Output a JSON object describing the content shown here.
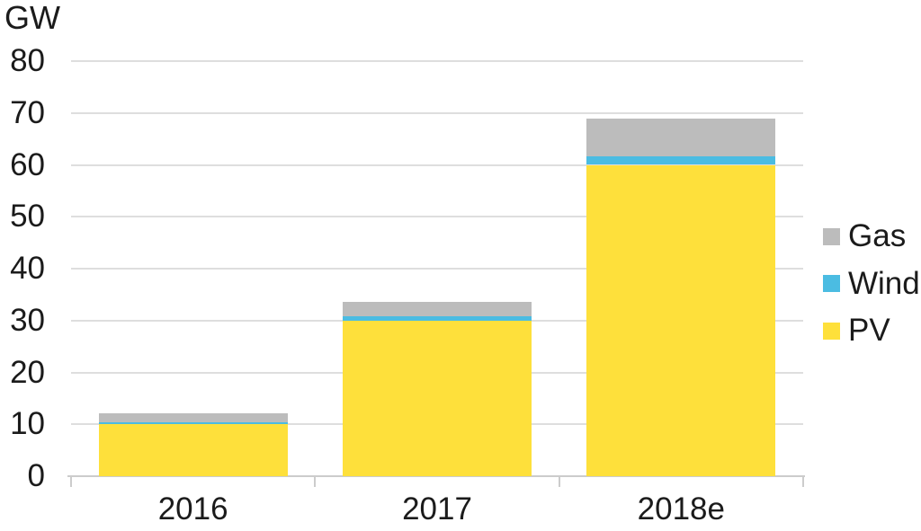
{
  "chart_data": {
    "type": "bar",
    "stacked": true,
    "title": "",
    "categories": [
      "2016",
      "2017",
      "2018e"
    ],
    "series": [
      {
        "name": "PV",
        "color": "#FEE03B",
        "values": [
          10,
          30,
          60
        ]
      },
      {
        "name": "Wind",
        "color": "#4BBCE2",
        "values": [
          0.4,
          0.8,
          1.6
        ]
      },
      {
        "name": "Gas",
        "color": "#BCBCBC",
        "values": [
          1.8,
          2.8,
          7.3
        ]
      }
    ],
    "y_axis": {
      "label": "GW",
      "min": 0,
      "max": 80,
      "tick_step": 10,
      "tick_labels": [
        "0",
        "10",
        "20",
        "30",
        "40",
        "50",
        "60",
        "70",
        "80"
      ]
    },
    "x_axis": {
      "tick_labels": [
        "2016",
        "2017",
        "2018e"
      ]
    },
    "legend": {
      "position": "right",
      "items": [
        {
          "label": "Gas",
          "color": "#BCBCBC"
        },
        {
          "label": "Wind",
          "color": "#4BBCE2"
        },
        {
          "label": "PV",
          "color": "#FEE03B"
        }
      ]
    },
    "grid": true,
    "colors": {
      "text": "#1B1B1B",
      "gridline": "#DEDEDE",
      "axis": "#CCCCCC",
      "background": "#FFFFFF"
    }
  }
}
